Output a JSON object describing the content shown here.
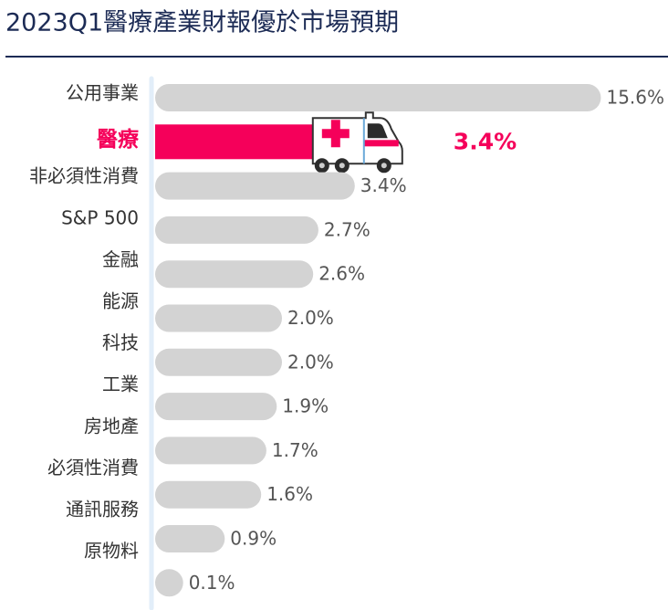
{
  "chart_data": {
    "type": "bar",
    "orientation": "horizontal",
    "title": "2023Q1醫療產業財報優於市場預期",
    "categories": [
      "公用事業",
      "醫療",
      "非必須性消費",
      "S&P 500",
      "金融",
      "能源",
      "科技",
      "工業",
      "房地產",
      "必須性消費",
      "通訊服務",
      "原物料"
    ],
    "values": [
      15.6,
      3.4,
      3.4,
      2.7,
      2.6,
      2.0,
      2.0,
      1.9,
      1.7,
      1.6,
      0.9,
      0.1
    ],
    "value_labels": [
      "15.6%",
      "3.4%",
      "3.4%",
      "2.7%",
      "2.6%",
      "2.0%",
      "2.0%",
      "1.9%",
      "1.7%",
      "1.6%",
      "0.9%",
      "0.1%"
    ],
    "color": "#d3d3d3",
    "colors": [
      "#d3d3d3",
      "#f5005a",
      "#d3d3d3",
      "#d3d3d3",
      "#d3d3d3",
      "#d3d3d3",
      "#d3d3d3",
      "#d3d3d3",
      "#d3d3d3",
      "#d3d3d3",
      "#d3d3d3",
      "#d3d3d3"
    ]
  }
}
